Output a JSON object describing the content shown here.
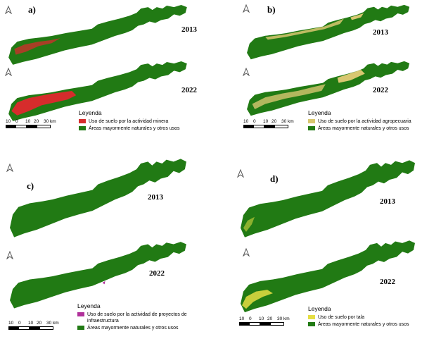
{
  "colors": {
    "natural": "#217a14",
    "mining": "#d62c2c",
    "agro": "#d8c770",
    "infra": "#b0309a",
    "logging": "#e5de43"
  },
  "panels": [
    {
      "letter": "a)",
      "year_top": "2013",
      "year_bottom": "2022",
      "legend_title": "Leyenda",
      "legend_items": [
        {
          "label": "Uso de suelo por la actividad minera",
          "color": "#d62c2c"
        },
        {
          "label": "Áreas mayormente naturales y otros usos",
          "color": "#217a14"
        }
      ],
      "scale_labels": [
        "10",
        "0",
        "10",
        "20",
        "30 km"
      ]
    },
    {
      "letter": "b)",
      "year_top": "2013",
      "year_bottom": "2022",
      "legend_title": "Leyenda",
      "legend_items": [
        {
          "label": "Uso de suelo por la actividad agropecuaria",
          "color": "#d8c770"
        },
        {
          "label": "Áreas mayormente naturales y otros usos",
          "color": "#217a14"
        }
      ],
      "scale_labels": [
        "10",
        "0",
        "10",
        "20",
        "30 km"
      ]
    },
    {
      "letter": "c)",
      "year_top": "2013",
      "year_bottom": "2022",
      "legend_title": "Leyenda",
      "legend_items": [
        {
          "label": "Uso de suelo por la actividad de proyectos de infraestructura",
          "color": "#b0309a"
        },
        {
          "label": "Áreas mayormente naturales y otros usos",
          "color": "#217a14"
        }
      ],
      "scale_labels": [
        "10",
        "0",
        "10",
        "20",
        "30 km"
      ]
    },
    {
      "letter": "d)",
      "year_top": "2013",
      "year_bottom": "2022",
      "legend_title": "Leyenda",
      "legend_items": [
        {
          "label": "Uso de suelo por tala",
          "color": "#e5de43"
        },
        {
          "label": "Áreas mayormente naturales y otros usos",
          "color": "#217a14"
        }
      ],
      "scale_labels": [
        "10",
        "0",
        "10",
        "20",
        "30 km"
      ]
    }
  ]
}
